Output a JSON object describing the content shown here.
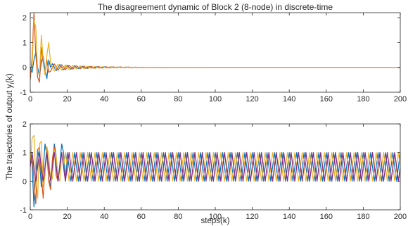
{
  "chart_data": [
    {
      "type": "line",
      "title": "The disagreement dynamic of Block 2 (8-node) in discrete-time",
      "xlabel": "",
      "ylabel": "",
      "xlim": [
        0,
        200
      ],
      "ylim": [
        -1,
        2.2
      ],
      "xticks": [
        0,
        20,
        40,
        60,
        80,
        100,
        120,
        140,
        160,
        180,
        200
      ],
      "yticks": [
        -1,
        0,
        1,
        2
      ],
      "grid": false,
      "box": true,
      "series": [
        {
          "color": "#0072BD",
          "start": 0.0,
          "amp": 0.35,
          "decay": 0.07,
          "period": 4.0,
          "phase": 1.5708,
          "offset": 0.0,
          "transient": [
            0.0,
            -0.2,
            0.3,
            0.6,
            0.0,
            -0.35,
            0.2,
            0.45,
            -0.1,
            -0.45,
            0.3
          ]
        },
        {
          "color": "#D95319",
          "start": -0.5,
          "amp": 0.3,
          "decay": 0.06,
          "period": 4.0,
          "phase": 0.0,
          "offset": 0.0,
          "transient": [
            -0.5,
            0.4,
            2.2,
            0.5,
            -0.4,
            -0.6,
            0.8,
            0.2,
            -0.3,
            0.3,
            -0.2
          ]
        },
        {
          "color": "#EDB120",
          "start": 0.0,
          "amp": 0.35,
          "decay": 0.065,
          "period": 4.0,
          "phase": 3.1416,
          "offset": 0.0,
          "transient": [
            0.0,
            0.0,
            1.9,
            1.6,
            -0.2,
            -0.3,
            1.3,
            0.3,
            -0.3,
            0.5,
            1.0
          ]
        }
      ]
    },
    {
      "type": "line",
      "title": "",
      "xlabel": "steps(k)",
      "ylabel": "The trajectories of output y_i(k)",
      "xlim": [
        0,
        200
      ],
      "ylim": [
        -1,
        2
      ],
      "xticks": [
        0,
        20,
        40,
        60,
        80,
        100,
        120,
        140,
        160,
        180,
        200
      ],
      "yticks": [
        -1,
        0,
        1,
        2
      ],
      "grid": false,
      "box": true,
      "series": [
        {
          "color": "#0072BD",
          "start": 0.9,
          "amp": 0.5,
          "decay": 0.0,
          "period": 4.0,
          "phase": 1.5708,
          "offset": 0.5,
          "transient": [
            0.9,
            0.6,
            -0.9,
            0.3,
            1.1,
            0.7,
            -0.2,
            0.4,
            1.3,
            0.9,
            0.1,
            -0.2,
            0.6,
            1.3,
            0.9,
            0.0,
            0.6,
            1.3,
            1.0,
            0.0
          ]
        },
        {
          "color": "#D95319",
          "start": 0.8,
          "amp": 0.5,
          "decay": 0.0,
          "period": 4.0,
          "phase": 0.0,
          "offset": 0.5,
          "transient": [
            0.8,
            1.0,
            0.0,
            -0.8,
            1.1,
            1.2,
            0.2,
            -0.6,
            0.5,
            1.2,
            0.0,
            -0.3,
            0.8,
            1.2,
            0.2,
            0.0
          ]
        },
        {
          "color": "#EDB120",
          "start": 0.6,
          "amp": 0.5,
          "decay": 0.0,
          "period": 4.0,
          "phase": 3.1416,
          "offset": 0.5,
          "transient": [
            0.6,
            1.5,
            1.6,
            0.2,
            -0.6,
            1.3,
            1.4,
            -0.2,
            0.2,
            1.2,
            0.9,
            0.0,
            0.1,
            1.1,
            0.9,
            0.2,
            0.0,
            1.0
          ]
        },
        {
          "color": "#7E2F8E",
          "start": 1.0,
          "amp": 0.5,
          "decay": 0.0,
          "period": 4.0,
          "phase": 0.0,
          "offset": 0.5,
          "transient": []
        }
      ]
    }
  ]
}
